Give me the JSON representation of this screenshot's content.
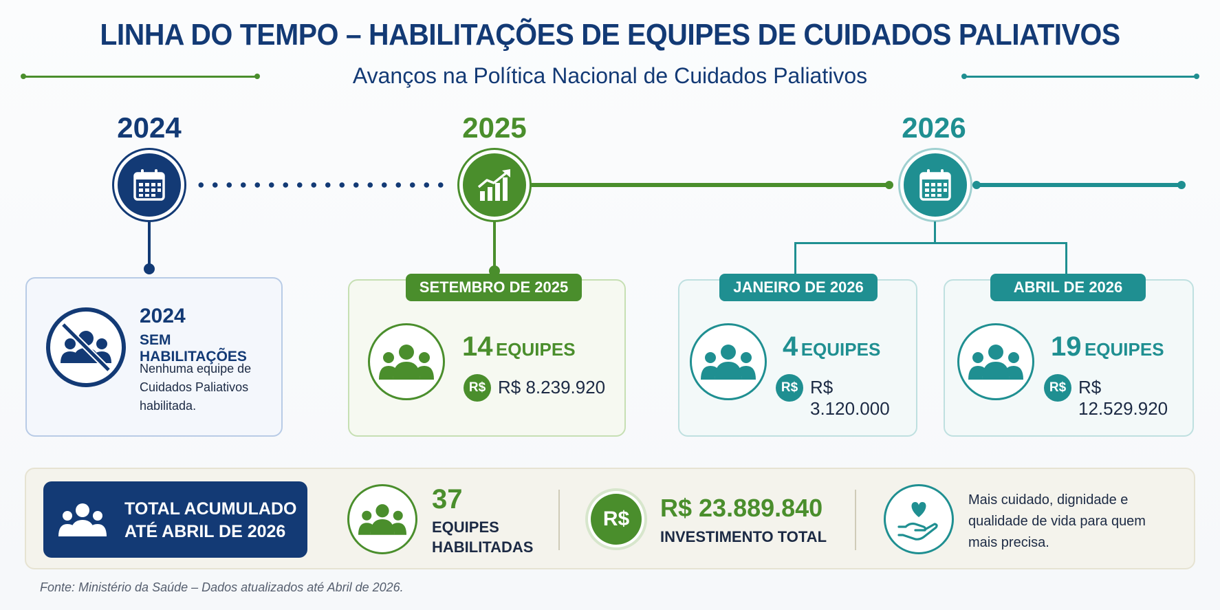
{
  "header": {
    "title": "LINHA DO TEMPO – HABILITAÇÕES DE EQUIPES DE CUIDADOS PALIATIVOS",
    "subtitle": "Avanços na Política Nacional de Cuidados Paliativos"
  },
  "colors": {
    "navy": "#133a75",
    "green": "#4a8e2c",
    "teal": "#1f8f91"
  },
  "timeline": {
    "years": [
      "2024",
      "2025",
      "2026"
    ],
    "icons": [
      "calendar-icon",
      "growth-chart-icon",
      "calendar-icon"
    ]
  },
  "card_2024": {
    "year": "2024",
    "heading": "SEM HABILITAÇÕES",
    "description": "Nenhuma equipe de Cuidados Paliativos habilitada."
  },
  "cards": [
    {
      "period": "SETEMBRO DE 2025",
      "teams": "14",
      "teams_label": "EQUIPES",
      "currency": "R$",
      "amount": "R$ 8.239.920"
    },
    {
      "period": "JANEIRO DE 2026",
      "teams": "4",
      "teams_label": "EQUIPES",
      "currency": "R$",
      "amount": "R$ 3.120.000"
    },
    {
      "period": "ABRIL DE 2026",
      "teams": "19",
      "teams_label": "EQUIPES",
      "currency": "R$",
      "amount": "R$ 12.529.920"
    }
  ],
  "summary": {
    "total_label_line1": "TOTAL ACUMULADO",
    "total_label_line2": "ATÉ ABRIL DE 2026",
    "teams_total": "37",
    "teams_label_line1": "EQUIPES",
    "teams_label_line2": "HABILITADAS",
    "currency": "R$",
    "investment_total": "R$ 23.889.840",
    "investment_label": "INVESTIMENTO TOTAL",
    "message_line1": "Mais cuidado, dignidade e",
    "message_line2": "qualidade de vida para quem",
    "message_line3": "mais precisa."
  },
  "footer": "Fonte: Ministério da Saúde – Dados atualizados até Abril de 2026."
}
